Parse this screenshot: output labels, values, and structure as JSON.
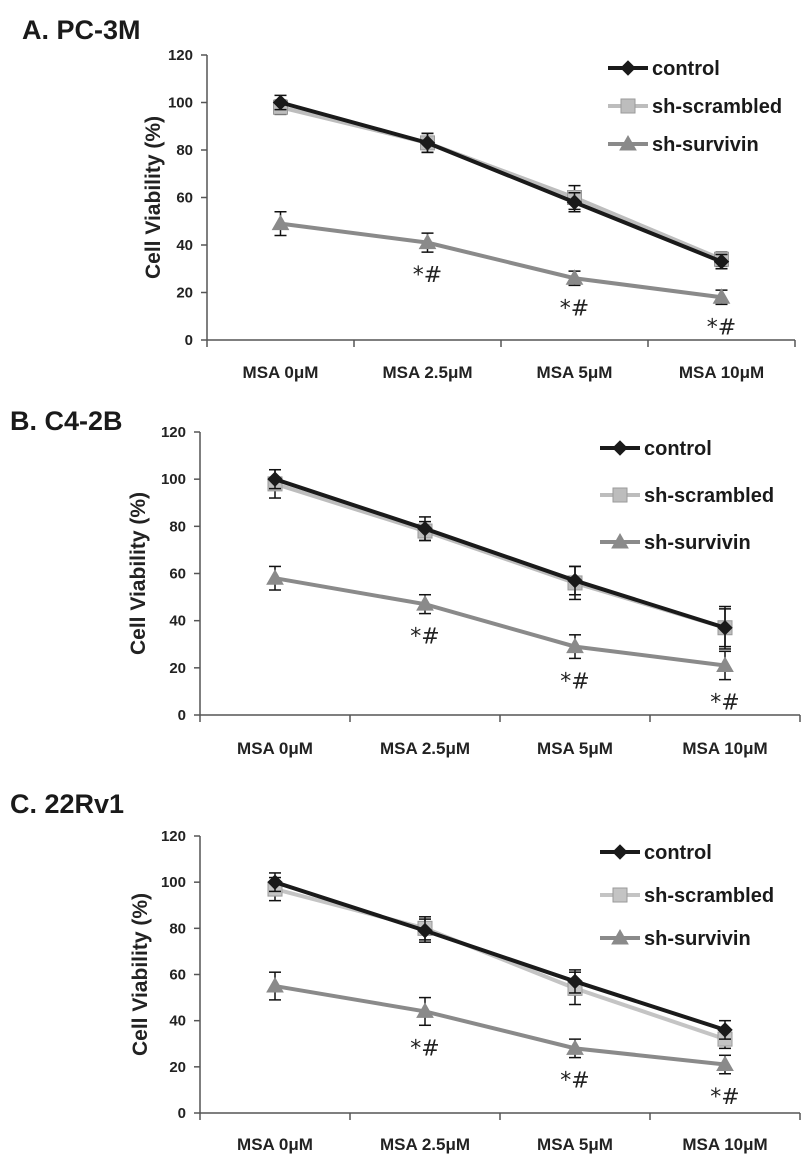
{
  "chart_data": [
    {
      "type": "line",
      "panel_label": "A.  PC-3M",
      "ylabel": "Cell Viability (%)",
      "categories": [
        "MSA 0μM",
        "MSA 2.5μM",
        "MSA 5μM",
        "MSA 10μM"
      ],
      "ylim": [
        0,
        120
      ],
      "yticks": [
        0,
        20,
        40,
        60,
        80,
        100,
        120
      ],
      "legend_position": "top-right",
      "series": [
        {
          "name": "control",
          "values": [
            100,
            83,
            58,
            33
          ],
          "errors": [
            3,
            4,
            4,
            3
          ],
          "color": "#1a1a1a",
          "marker": "diamond"
        },
        {
          "name": "sh-scrambled",
          "values": [
            98,
            83,
            60,
            34
          ],
          "errors": [
            3,
            4,
            5,
            3
          ],
          "color": "#bdbdbd",
          "marker": "square"
        },
        {
          "name": "sh-survivin",
          "values": [
            49,
            41,
            26,
            18
          ],
          "errors": [
            5,
            4,
            3,
            3
          ],
          "color": "#8a8a8a",
          "marker": "triangle"
        }
      ],
      "annotations": [
        "",
        "*#",
        "*#",
        "*#"
      ]
    },
    {
      "type": "line",
      "panel_label": "B.  C4-2B",
      "ylabel": "Cell Viability (%)",
      "categories": [
        "MSA 0μM",
        "MSA 2.5μM",
        "MSA 5μM",
        "MSA 10μM"
      ],
      "ylim": [
        0,
        120
      ],
      "yticks": [
        0,
        20,
        40,
        60,
        80,
        100,
        120
      ],
      "legend_position": "top-right",
      "series": [
        {
          "name": "control",
          "values": [
            100,
            79,
            57,
            37
          ],
          "errors": [
            4,
            5,
            6,
            9
          ],
          "color": "#1a1a1a",
          "marker": "diamond"
        },
        {
          "name": "sh-scrambled",
          "values": [
            98,
            78,
            56,
            37
          ],
          "errors": [
            6,
            4,
            7,
            8
          ],
          "color": "#bdbdbd",
          "marker": "square"
        },
        {
          "name": "sh-survivin",
          "values": [
            58,
            47,
            29,
            21
          ],
          "errors": [
            5,
            4,
            5,
            6
          ],
          "color": "#8a8a8a",
          "marker": "triangle"
        }
      ],
      "annotations": [
        "",
        "*#",
        "*#",
        "*#"
      ]
    },
    {
      "type": "line",
      "panel_label": "C.  22Rv1",
      "ylabel": "Cell Viability (%)",
      "categories": [
        "MSA 0μM",
        "MSA 2.5μM",
        "MSA 5μM",
        "MSA 10μM"
      ],
      "ylim": [
        0,
        120
      ],
      "yticks": [
        0,
        20,
        40,
        60,
        80,
        100,
        120
      ],
      "legend_position": "top-right",
      "series": [
        {
          "name": "control",
          "values": [
            100,
            79,
            57,
            36
          ],
          "errors": [
            4,
            5,
            5,
            4
          ],
          "color": "#1a1a1a",
          "marker": "diamond"
        },
        {
          "name": "sh-scrambled",
          "values": [
            97,
            80,
            54,
            32
          ],
          "errors": [
            5,
            5,
            7,
            4
          ],
          "color": "#c4c4c4",
          "marker": "square"
        },
        {
          "name": "sh-survivin",
          "values": [
            55,
            44,
            28,
            21
          ],
          "errors": [
            6,
            6,
            4,
            4
          ],
          "color": "#8a8a8a",
          "marker": "triangle"
        }
      ],
      "annotations": [
        "",
        "*#",
        "*#",
        "*#"
      ]
    }
  ]
}
